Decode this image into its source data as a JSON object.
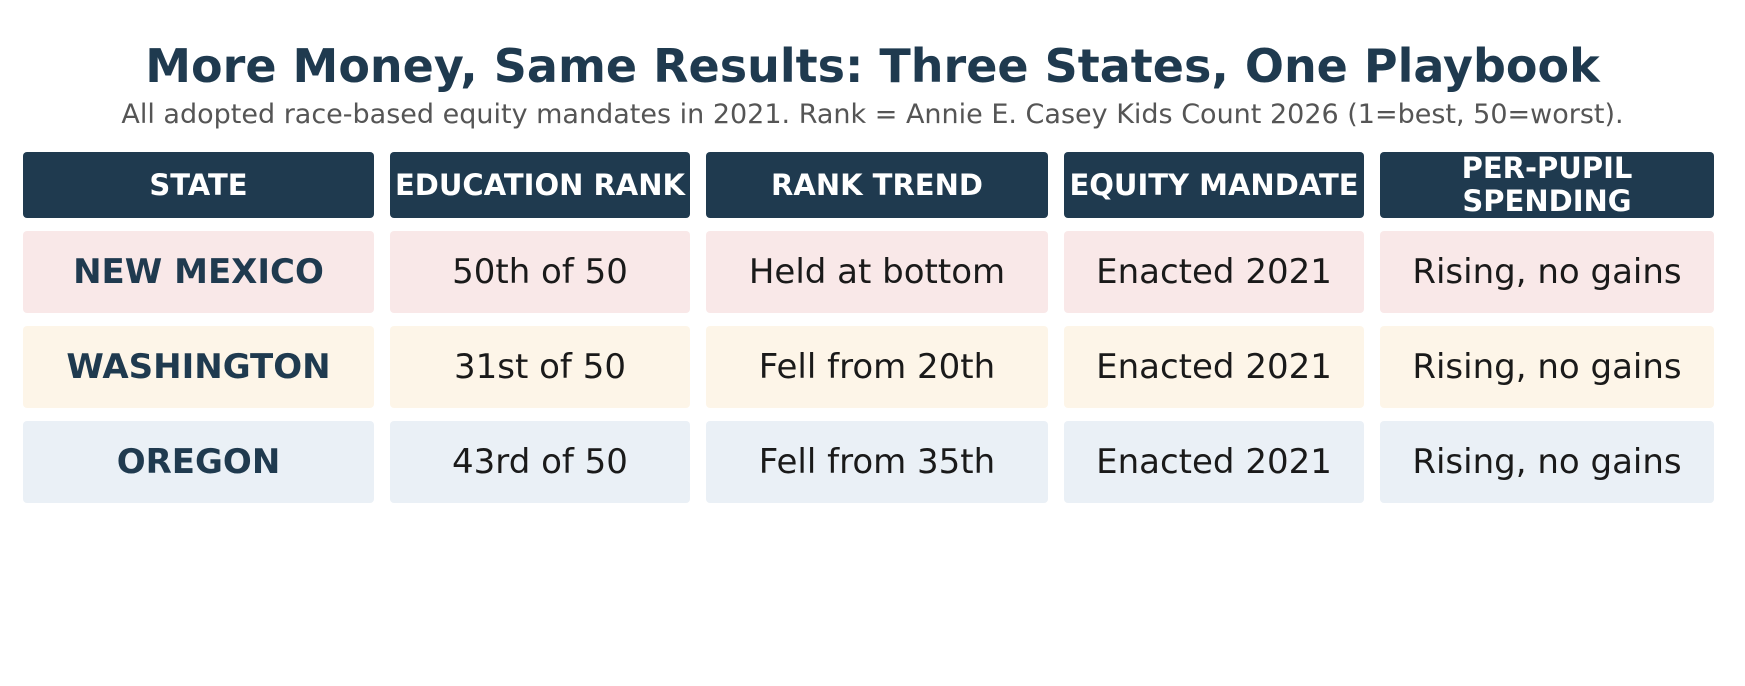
{
  "title": "More Money, Same Results: Three States, One Playbook",
  "subtitle": "All adopted race-based equity mandates in 2021.  Rank = Annie E. Casey Kids Count 2026 (1=best, 50=worst).",
  "colors": {
    "header": "#1f3a4f",
    "row_new_mexico": "#f9e8e8",
    "row_washington": "#fdf5e8",
    "row_oregon": "#eaf0f6"
  },
  "chart_data": {
    "type": "table",
    "title": "More Money, Same Results: Three States, One Playbook",
    "subtitle": "All adopted race-based equity mandates in 2021.  Rank = Annie E. Casey Kids Count 2026 (1=best, 50=worst).",
    "columns": [
      "STATE",
      "EDUCATION RANK",
      "RANK TREND",
      "EQUITY MANDATE",
      "PER-PUPIL SPENDING"
    ],
    "rows": [
      [
        "NEW MEXICO",
        "50th of 50",
        "Held at bottom",
        "Enacted 2021",
        "Rising, no gains"
      ],
      [
        "WASHINGTON",
        "31st of 50",
        "Fell from 20th",
        "Enacted 2021",
        "Rising, no gains"
      ],
      [
        "OREGON",
        "43rd of 50",
        "Fell from 35th",
        "Enacted 2021",
        "Rising, no gains"
      ]
    ]
  }
}
